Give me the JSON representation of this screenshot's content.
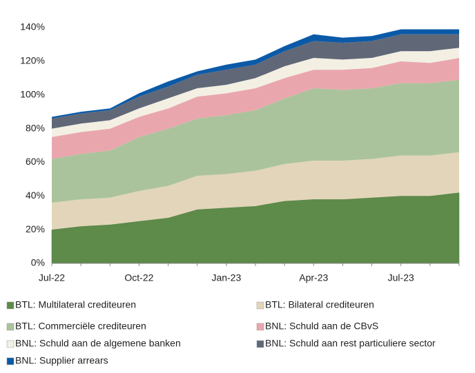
{
  "chart_data": {
    "type": "stacked-area",
    "categories": [
      "Jul-22",
      null,
      null,
      "Oct-22",
      null,
      null,
      "Jan-23",
      null,
      null,
      "Apr-23",
      null,
      null,
      "Jul-23",
      null,
      null
    ],
    "series": [
      {
        "name": "BTL: Multilateral crediteuren",
        "color": "#5e8a4a",
        "values": [
          20,
          22,
          23,
          25,
          27,
          32,
          33,
          34,
          37,
          38,
          38,
          39,
          40,
          40,
          42
        ]
      },
      {
        "name": "BTL: Bilateral crediteuren",
        "color": "#e2d5ba",
        "values": [
          16,
          16,
          16,
          18,
          19,
          20,
          20,
          21,
          22,
          23,
          23,
          23,
          24,
          24,
          24
        ]
      },
      {
        "name": "BTL: Commerciële crediteuren",
        "color": "#abc39c",
        "values": [
          26,
          27,
          28,
          32,
          34,
          34,
          35,
          36,
          39,
          43,
          42,
          42,
          43,
          43,
          43
        ]
      },
      {
        "name": "BNL: Schuld aan de CBvS",
        "color": "#e9a7ad",
        "values": [
          13,
          13,
          13,
          12,
          12,
          13,
          13,
          13,
          12,
          11,
          12,
          12,
          13,
          12,
          13
        ]
      },
      {
        "name": "BNL: Schuld aan de algemene banken",
        "color": "#f3f0e3",
        "values": [
          5,
          5,
          5,
          5,
          6,
          5,
          5,
          6,
          7,
          7,
          6,
          6,
          6,
          7,
          6
        ]
      },
      {
        "name": "BNL: Schuld aan rest particuliere sector",
        "color": "#606878",
        "values": [
          6,
          6,
          6,
          7,
          7,
          8,
          9,
          8,
          9,
          10,
          10,
          10,
          10,
          10,
          8
        ]
      },
      {
        "name": "BNL: Supplier arrears",
        "color": "#0b5aa8",
        "values": [
          1,
          1,
          1,
          2,
          3,
          2,
          3,
          3,
          3,
          4,
          3,
          3,
          3,
          3,
          3
        ]
      }
    ],
    "ylim": [
      0,
      140
    ],
    "yticks": [
      {
        "value": 0,
        "label": "0%"
      },
      {
        "value": 20,
        "label": "20%"
      },
      {
        "value": 40,
        "label": "40%"
      },
      {
        "value": 60,
        "label": "60%"
      },
      {
        "value": 80,
        "label": "80%"
      },
      {
        "value": 100,
        "label": "100%"
      },
      {
        "value": 120,
        "label": "120%"
      },
      {
        "value": 140,
        "label": "140%"
      }
    ]
  }
}
